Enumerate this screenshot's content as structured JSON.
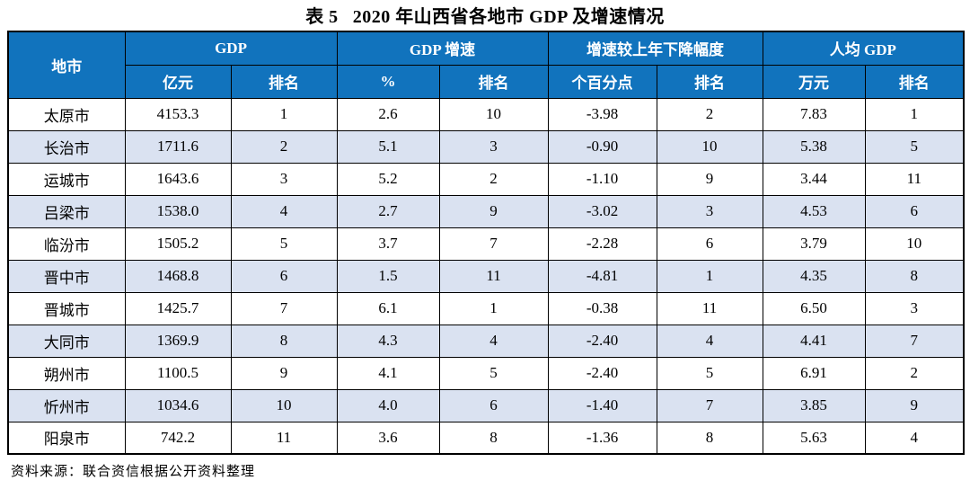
{
  "title": {
    "label": "表 5",
    "text": "2020 年山西省各地市 GDP 及增速情况"
  },
  "header": {
    "city": "地市",
    "groups": [
      {
        "label": "GDP",
        "subs": [
          "亿元",
          "排名"
        ]
      },
      {
        "label": "GDP 增速",
        "subs": [
          "%",
          "排名"
        ]
      },
      {
        "label": "增速较上年下降幅度",
        "subs": [
          "个百分点",
          "排名"
        ]
      },
      {
        "label": "人均 GDP",
        "subs": [
          "万元",
          "排名"
        ]
      }
    ]
  },
  "source_note": "资料来源：联合资信根据公开资料整理",
  "colors": {
    "header_bg": "#1173BD",
    "header_text": "#FFFFFF",
    "row_alt_bg": "#DAE2F1",
    "row_bg": "#FFFFFF",
    "border": "#000000"
  },
  "chart_data": {
    "type": "table",
    "title": "表 5 2020 年山西省各地市 GDP 及增速情况",
    "columns": [
      "地市",
      "GDP 亿元",
      "GDP 排名",
      "GDP增速 %",
      "GDP增速 排名",
      "增速较上年下降幅度 个百分点",
      "增速较上年下降幅度 排名",
      "人均GDP 万元",
      "人均GDP 排名"
    ],
    "rows": [
      [
        "太原市",
        "4153.3",
        "1",
        "2.6",
        "10",
        "-3.98",
        "2",
        "7.83",
        "1"
      ],
      [
        "长治市",
        "1711.6",
        "2",
        "5.1",
        "3",
        "-0.90",
        "10",
        "5.38",
        "5"
      ],
      [
        "运城市",
        "1643.6",
        "3",
        "5.2",
        "2",
        "-1.10",
        "9",
        "3.44",
        "11"
      ],
      [
        "吕梁市",
        "1538.0",
        "4",
        "2.7",
        "9",
        "-3.02",
        "3",
        "4.53",
        "6"
      ],
      [
        "临汾市",
        "1505.2",
        "5",
        "3.7",
        "7",
        "-2.28",
        "6",
        "3.79",
        "10"
      ],
      [
        "晋中市",
        "1468.8",
        "6",
        "1.5",
        "11",
        "-4.81",
        "1",
        "4.35",
        "8"
      ],
      [
        "晋城市",
        "1425.7",
        "7",
        "6.1",
        "1",
        "-0.38",
        "11",
        "6.50",
        "3"
      ],
      [
        "大同市",
        "1369.9",
        "8",
        "4.3",
        "4",
        "-2.40",
        "4",
        "4.41",
        "7"
      ],
      [
        "朔州市",
        "1100.5",
        "9",
        "4.1",
        "5",
        "-2.40",
        "5",
        "6.91",
        "2"
      ],
      [
        "忻州市",
        "1034.6",
        "10",
        "4.0",
        "6",
        "-1.40",
        "7",
        "3.85",
        "9"
      ],
      [
        "阳泉市",
        "742.2",
        "11",
        "3.6",
        "8",
        "-1.36",
        "8",
        "5.63",
        "4"
      ]
    ]
  }
}
